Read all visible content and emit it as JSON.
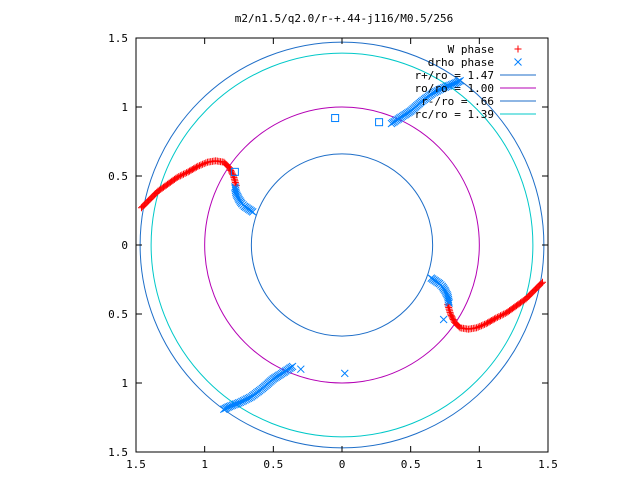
{
  "chart_data": {
    "type": "scatter",
    "title": "m2/n1.5/q2.0/r-+.44-j116/M0.5/256",
    "xlim": [
      -1.5,
      1.5
    ],
    "ylim": [
      -1.5,
      1.5
    ],
    "x_ticks": [
      {
        "value": -1.5,
        "label": "1.5"
      },
      {
        "value": -1.0,
        "label": "1"
      },
      {
        "value": -0.5,
        "label": "0.5"
      },
      {
        "value": 0.0,
        "label": "0"
      },
      {
        "value": 0.5,
        "label": "0.5"
      },
      {
        "value": 1.0,
        "label": "1"
      },
      {
        "value": 1.5,
        "label": "1.5"
      }
    ],
    "y_ticks": [
      {
        "value": 1.5,
        "label": "1.5"
      },
      {
        "value": 1.0,
        "label": "1"
      },
      {
        "value": 0.5,
        "label": "0.5"
      },
      {
        "value": 0.0,
        "label": "0"
      },
      {
        "value": -0.5,
        "label": "0.5"
      },
      {
        "value": -1.0,
        "label": "1"
      },
      {
        "value": -1.5,
        "label": "1.5"
      }
    ],
    "grid": false,
    "legend_position": "top-right",
    "series": [
      {
        "name": "W phase",
        "marker": "plus",
        "color": "#ff0000",
        "arms": [
          [
            [
              -1.46,
              0.27
            ],
            [
              -1.4,
              0.33
            ],
            [
              -1.34,
              0.39
            ],
            [
              -1.27,
              0.44
            ],
            [
              -1.2,
              0.49
            ],
            [
              -1.12,
              0.53
            ],
            [
              -1.05,
              0.57
            ],
            [
              -0.98,
              0.6
            ],
            [
              -0.92,
              0.61
            ],
            [
              -0.86,
              0.6
            ],
            [
              -0.82,
              0.56
            ],
            [
              -0.79,
              0.5
            ],
            [
              -0.77,
              0.43
            ]
          ],
          [
            [
              1.46,
              -0.27
            ],
            [
              1.4,
              -0.33
            ],
            [
              1.34,
              -0.39
            ],
            [
              1.27,
              -0.44
            ],
            [
              1.2,
              -0.49
            ],
            [
              1.12,
              -0.53
            ],
            [
              1.05,
              -0.57
            ],
            [
              0.98,
              -0.6
            ],
            [
              0.92,
              -0.61
            ],
            [
              0.86,
              -0.6
            ],
            [
              0.82,
              -0.56
            ],
            [
              0.79,
              -0.5
            ],
            [
              0.77,
              -0.43
            ]
          ]
        ]
      },
      {
        "name": "drho phase",
        "marker": "cross",
        "color": "#0080ff",
        "arms": [
          [
            [
              -0.65,
              0.24
            ],
            [
              -0.68,
              0.26
            ],
            [
              -0.71,
              0.28
            ],
            [
              -0.73,
              0.3
            ],
            [
              -0.75,
              0.33
            ],
            [
              -0.77,
              0.37
            ],
            [
              -0.78,
              0.42
            ]
          ],
          [
            [
              0.36,
              0.88
            ],
            [
              0.42,
              0.92
            ],
            [
              0.5,
              0.97
            ],
            [
              0.58,
              1.04
            ],
            [
              0.66,
              1.1
            ],
            [
              0.74,
              1.14
            ],
            [
              0.82,
              1.17
            ],
            [
              0.86,
              1.19
            ]
          ],
          [
            [
              0.65,
              -0.24
            ],
            [
              0.68,
              -0.26
            ],
            [
              0.71,
              -0.28
            ],
            [
              0.73,
              -0.3
            ],
            [
              0.75,
              -0.33
            ],
            [
              0.77,
              -0.37
            ],
            [
              0.78,
              -0.42
            ]
          ],
          [
            [
              -0.36,
              -0.88
            ],
            [
              -0.42,
              -0.92
            ],
            [
              -0.5,
              -0.97
            ],
            [
              -0.58,
              -1.04
            ],
            [
              -0.66,
              -1.1
            ],
            [
              -0.74,
              -1.14
            ],
            [
              -0.82,
              -1.17
            ],
            [
              -0.86,
              -1.19
            ]
          ]
        ],
        "extra_points": [
          [
            0.74,
            -0.54
          ],
          [
            -0.3,
            -0.9
          ],
          [
            0.02,
            -0.93
          ]
        ]
      },
      {
        "name": "squares",
        "marker": "square",
        "color": "#0080ff",
        "points": [
          [
            -0.78,
            0.53
          ],
          [
            -0.05,
            0.92
          ],
          [
            0.27,
            0.89
          ]
        ]
      }
    ],
    "circles": [
      {
        "label": "r+/ro = 1.47",
        "radius": 1.47,
        "color": "#1e6ec8"
      },
      {
        "label": "ro/ro = 1.00",
        "radius": 1.0,
        "color": "#b400b4"
      },
      {
        "label": "r-/ro = .66",
        "radius": 0.66,
        "color": "#1e6ec8"
      },
      {
        "label": "rc/ro = 1.39",
        "radius": 1.39,
        "color": "#00c8c8"
      }
    ]
  }
}
